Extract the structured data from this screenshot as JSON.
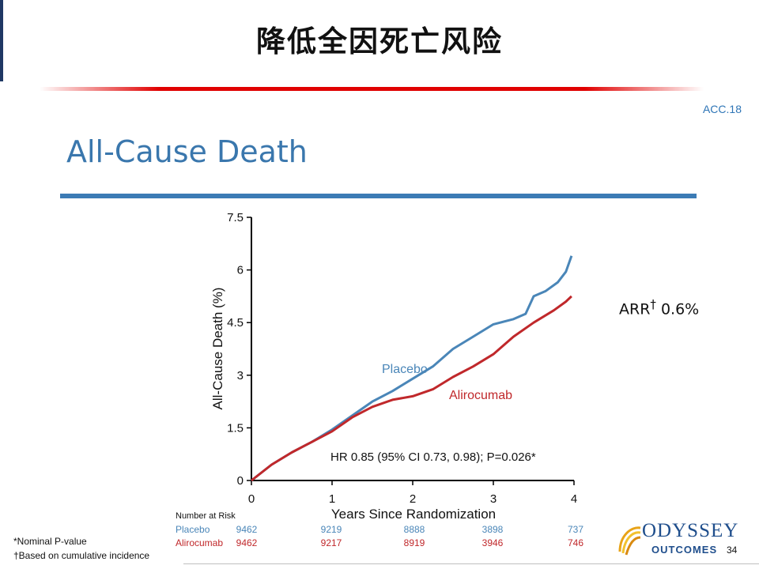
{
  "header": {
    "title": "降低全因死亡风险",
    "tag": "ACC.18"
  },
  "slide_title": "All-Cause Death",
  "annotation": {
    "arr_label": "ARR",
    "arr_mark": "†",
    "arr_value": " 0.6%"
  },
  "footnotes": [
    "*Nominal P-value",
    "†Based on cumulative incidence"
  ],
  "logo": {
    "word": "ODYSSEY",
    "sub": "OUTCOMES"
  },
  "page_number": "34",
  "colors": {
    "placebo": "#4a86b8",
    "alirocumab": "#c0282b",
    "title_blue": "#3a77ad",
    "accent_red": "#e00000"
  },
  "chart_data": {
    "type": "line",
    "title": "",
    "xlabel": "Years Since Randomization",
    "ylabel": "All-Cause Death (%)",
    "xlim": [
      0,
      4
    ],
    "ylim": [
      0,
      7.5
    ],
    "xticks": [
      "0",
      "1",
      "2",
      "3",
      "4"
    ],
    "yticks": [
      "0",
      "1.5",
      "3",
      "4.5",
      "6",
      "7.5"
    ],
    "hr_text": "HR 0.85 (95% CI 0.73, 0.98); P=0.026*",
    "series": [
      {
        "name": "Placebo",
        "color": "#4a86b8",
        "x": [
          0,
          0.25,
          0.5,
          0.75,
          1.0,
          1.25,
          1.5,
          1.75,
          2.0,
          2.25,
          2.5,
          2.75,
          3.0,
          3.25,
          3.4,
          3.5,
          3.65,
          3.8,
          3.9,
          3.97
        ],
        "y": [
          0,
          0.45,
          0.8,
          1.1,
          1.45,
          1.85,
          2.25,
          2.55,
          2.9,
          3.25,
          3.75,
          4.1,
          4.45,
          4.6,
          4.75,
          5.25,
          5.4,
          5.65,
          5.95,
          6.4
        ]
      },
      {
        "name": "Alirocumab",
        "color": "#c0282b",
        "x": [
          0,
          0.25,
          0.5,
          0.75,
          1.0,
          1.25,
          1.5,
          1.75,
          2.0,
          2.25,
          2.5,
          2.75,
          3.0,
          3.25,
          3.5,
          3.75,
          3.9,
          3.97
        ],
        "y": [
          0,
          0.45,
          0.8,
          1.1,
          1.4,
          1.8,
          2.1,
          2.3,
          2.4,
          2.6,
          2.95,
          3.25,
          3.6,
          4.1,
          4.5,
          4.85,
          5.1,
          5.25
        ]
      }
    ],
    "at_risk": {
      "label": "Number at Risk",
      "rows": [
        {
          "name": "Placebo",
          "color": "#4a86b8",
          "values": [
            "9462",
            "9219",
            "8888",
            "3898",
            "737"
          ]
        },
        {
          "name": "Alirocumab",
          "color": "#c0282b",
          "values": [
            "9462",
            "9217",
            "8919",
            "3946",
            "746"
          ]
        }
      ]
    }
  }
}
